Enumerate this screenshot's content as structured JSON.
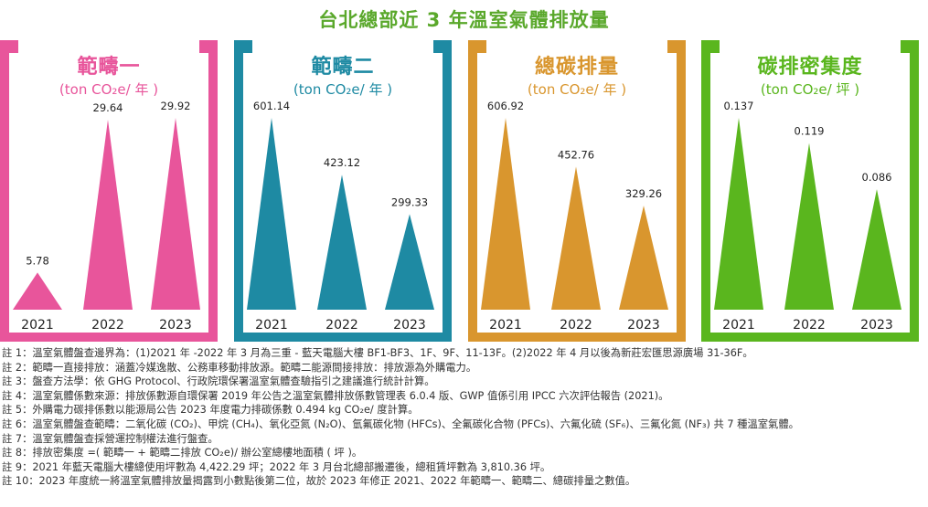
{
  "title": "台北總部近 3 年溫室氣體排放量",
  "panels": [
    {
      "title": "範疇一",
      "unit": "(ton CO₂e/ 年 )",
      "color": "#e8559b"
    },
    {
      "title": "範疇二",
      "unit": "(ton CO₂e/ 年 )",
      "color": "#1e8aa3"
    },
    {
      "title": "總碳排量",
      "unit": "(ton CO₂e/ 年 )",
      "color": "#d9962e"
    },
    {
      "title": "碳排密集度",
      "unit": "(ton CO₂e/ 坪 )",
      "color": "#5ab61e"
    }
  ],
  "chart_data": [
    {
      "type": "bar",
      "title": "範疇一",
      "unit": "(ton CO₂e/ 年 )",
      "categories": [
        "2021",
        "2022",
        "2023"
      ],
      "values": [
        5.78,
        29.64,
        29.92
      ],
      "labels": [
        "5.78",
        "29.64",
        "29.92"
      ],
      "ylim": [
        0,
        29.92
      ]
    },
    {
      "type": "bar",
      "title": "範疇二",
      "unit": "(ton CO₂e/ 年 )",
      "categories": [
        "2021",
        "2022",
        "2023"
      ],
      "values": [
        601.14,
        423.12,
        299.33
      ],
      "labels": [
        "601.14",
        "423.12",
        "299.33"
      ],
      "ylim": [
        0,
        601.14
      ]
    },
    {
      "type": "bar",
      "title": "總碳排量",
      "unit": "(ton CO₂e/ 年 )",
      "categories": [
        "2021",
        "2022",
        "2023"
      ],
      "values": [
        606.92,
        452.76,
        329.26
      ],
      "labels": [
        "606.92",
        "452.76",
        "329.26"
      ],
      "ylim": [
        0,
        606.92
      ]
    },
    {
      "type": "bar",
      "title": "碳排密集度",
      "unit": "(ton CO₂e/ 坪 )",
      "categories": [
        "2021",
        "2022",
        "2023"
      ],
      "values": [
        0.137,
        0.119,
        0.086
      ],
      "labels": [
        "0.137",
        "0.119",
        "0.086"
      ],
      "ylim": [
        0,
        0.137
      ]
    }
  ],
  "footnotes": [
    "註 1：溫室氣體盤查邊界為：(1)2021 年 -2022 年 3 月為三重 - 藍天電腦大樓 BF1-BF3、1F、9F、11-13F。(2)2022 年 4 月以後為新莊宏匯思源廣場 31-36F。",
    "註 2：範疇一直接排放：涵蓋冷媒逸散、公務車移動排放源。範疇二能源間接排放：排放源為外購電力。",
    "註 3：盤查方法學：依 GHG Protocol、行政院環保署溫室氣體查驗指引之建議進行統計計算。",
    "註 4：溫室氣體係數來源：排放係數源自環保署 2019 年公告之溫室氣體排放係數管理表 6.0.4 版、GWP 值係引用 IPCC 六次評估報告 (2021)。",
    "註 5：外購電力碳排係數以能源局公告 2023 年度電力排碳係數 0.494 kg CO₂e/ 度計算。",
    "註 6：溫室氣體盤查範疇：二氧化碳 (CO₂)、甲烷 (CH₄)、氧化亞氮 (N₂O)、氫氟碳化物 (HFCs)、全氟碳化合物 (PFCs)、六氟化硫 (SF₆)、三氟化氮 (NF₃) 共 7 種溫室氣體。",
    "註 7：溫室氣體盤查採營運控制權法進行盤查。",
    "註 8：排放密集度 =( 範疇一 + 範疇二排放 CO₂e)/ 辦公室總樓地面積 ( 坪 )。",
    "註 9：2021 年藍天電腦大樓總使用坪數為 4,422.29 坪；2022 年 3 月台北總部搬遷後，總租賃坪數為 3,810.36 坪。",
    "註 10：2023 年度統一將溫室氣體排放量揭露到小數點後第二位，故於 2023 年修正 2021、2022 年範疇一、範疇二、總碳排量之數值。"
  ]
}
